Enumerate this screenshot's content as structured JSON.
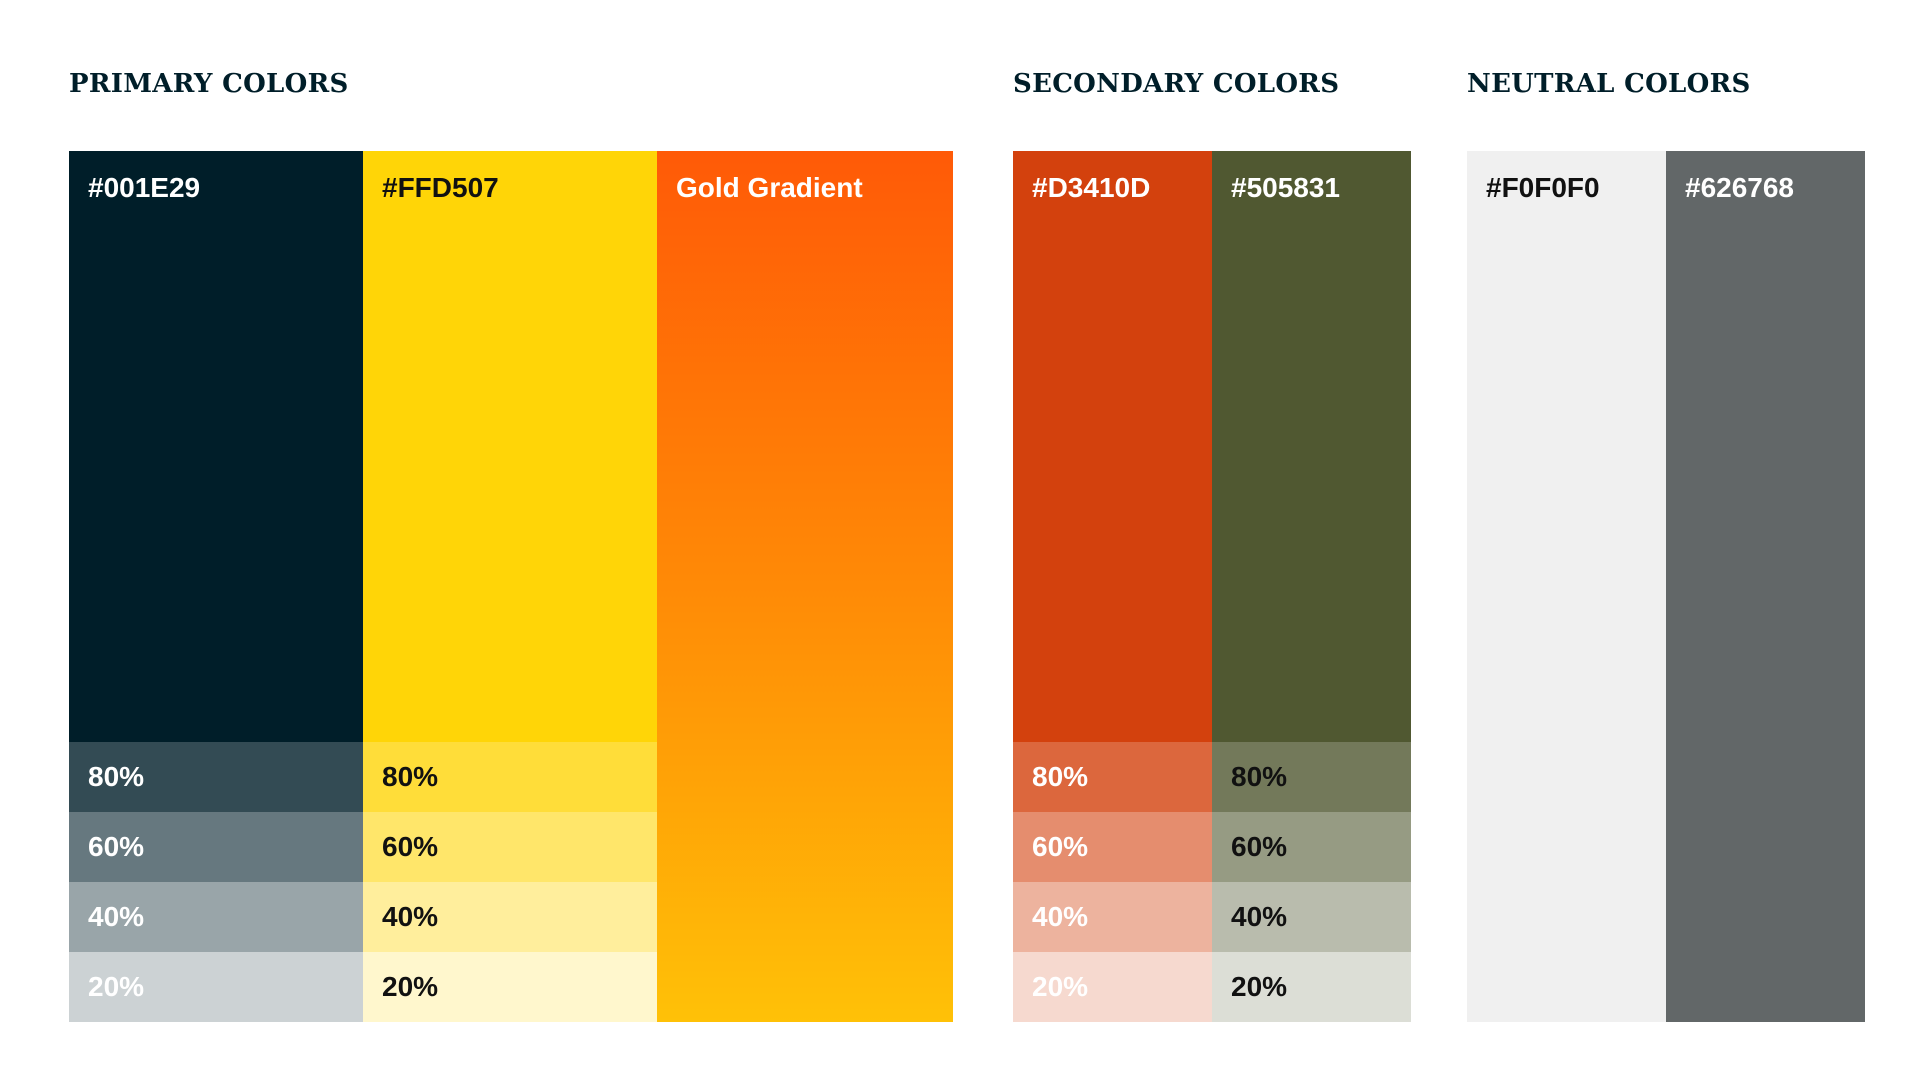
{
  "primary": {
    "heading": "PRIMARY COLORS",
    "swatches": [
      {
        "label": "#001E29",
        "color": "#001E29",
        "tints": [
          "80%",
          "60%",
          "40%",
          "20%"
        ]
      },
      {
        "label": "#FFD507",
        "color": "#FFD507",
        "tints": [
          "80%",
          "60%",
          "40%",
          "20%"
        ]
      },
      {
        "label": "Gold Gradient",
        "gradient": [
          "#FF5A07",
          "#FFC107"
        ]
      }
    ]
  },
  "secondary": {
    "heading": "SECONDARY COLORS",
    "swatches": [
      {
        "label": "#D3410D",
        "color": "#D3410D",
        "tints": [
          "80%",
          "60%",
          "40%",
          "20%"
        ]
      },
      {
        "label": "#505831",
        "color": "#505831",
        "tints": [
          "80%",
          "60%",
          "40%",
          "20%"
        ]
      }
    ]
  },
  "neutral": {
    "heading": "NEUTRAL COLORS",
    "swatches": [
      {
        "label": "#F0F0F0",
        "color": "#F0F0F0"
      },
      {
        "label": "#626768",
        "color": "#626768"
      }
    ]
  }
}
